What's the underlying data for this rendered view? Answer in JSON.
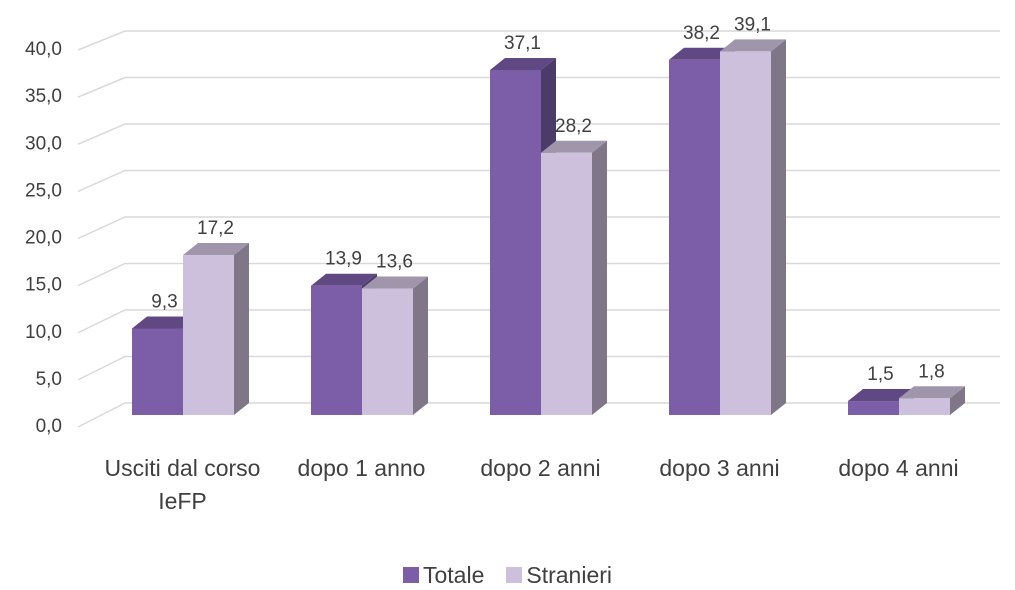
{
  "chart_data": {
    "type": "bar3d",
    "categories": [
      "Usciti dal corso IeFP",
      "dopo 1 anno",
      "dopo 2 anni",
      "dopo 3 anni",
      "dopo 4 anni"
    ],
    "series": [
      {
        "name": "Totale",
        "color": "#7b5ea7",
        "values": [
          9.3,
          13.9,
          37.1,
          38.2,
          1.5
        ],
        "value_labels": [
          "9,3",
          "13,9",
          "37,1",
          "38,2",
          "1,5"
        ]
      },
      {
        "name": "Stranieri",
        "color": "#cdc0dc",
        "values": [
          17.2,
          13.6,
          28.2,
          39.1,
          1.8
        ],
        "value_labels": [
          "17,2",
          "13,6",
          "28,2",
          "39,1",
          "1,8"
        ]
      }
    ],
    "ylim": [
      0,
      40
    ],
    "yticks": [
      {
        "value": 0,
        "label": "0,0"
      },
      {
        "value": 5,
        "label": "5,0"
      },
      {
        "value": 10,
        "label": "10,0"
      },
      {
        "value": 15,
        "label": "15,0"
      },
      {
        "value": 20,
        "label": "20,0"
      },
      {
        "value": 25,
        "label": "25,0"
      },
      {
        "value": 30,
        "label": "30,0"
      },
      {
        "value": 35,
        "label": "35,0"
      },
      {
        "value": 40,
        "label": "40,0"
      }
    ],
    "grid": true,
    "legend": "bottom"
  }
}
